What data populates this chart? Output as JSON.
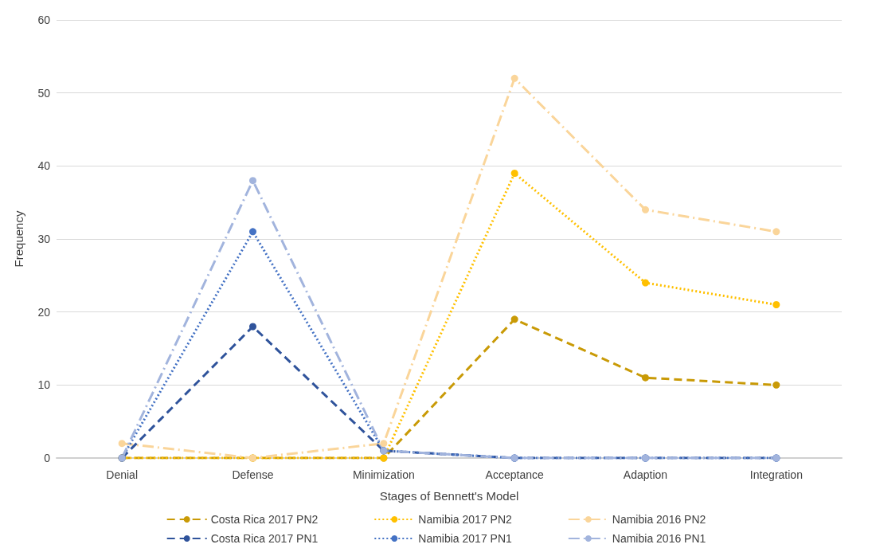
{
  "chart_data": {
    "type": "line",
    "xlabel": "Stages of Bennett's Model",
    "ylabel": "Frequency",
    "categories": [
      "Denial",
      "Defense",
      "Minimization",
      "Acceptance",
      "Adaption",
      "Integration"
    ],
    "series": [
      {
        "name": "Costa Rica 2017 PN2",
        "color": "#c99a06",
        "line_style": "dashed",
        "values": [
          0,
          0,
          0,
          19,
          11,
          10
        ]
      },
      {
        "name": "Namibia 2017 PN2",
        "color": "#ffc000",
        "line_style": "dotted",
        "values": [
          0,
          0,
          0,
          39,
          24,
          21
        ]
      },
      {
        "name": "Namibia 2016 PN2",
        "color": "#fad59a",
        "line_style": "dashdot",
        "values": [
          2,
          0,
          2,
          52,
          34,
          31
        ]
      },
      {
        "name": "Costa Rica 2017 PN1",
        "color": "#2f539b",
        "line_style": "dashed",
        "values": [
          0,
          18,
          1,
          0,
          0,
          0
        ]
      },
      {
        "name": "Namibia 2017 PN1",
        "color": "#4472c4",
        "line_style": "dotted",
        "values": [
          0,
          31,
          1,
          0,
          0,
          0
        ]
      },
      {
        "name": "Namibia 2016 PN1",
        "color": "#a2b4dd",
        "line_style": "dashdot",
        "values": [
          0,
          38,
          1,
          0,
          0,
          0
        ]
      }
    ],
    "ylim": [
      0,
      60
    ],
    "yticks": [
      0,
      10,
      20,
      30,
      40,
      50,
      60
    ],
    "grid": "y",
    "legend": "bottom",
    "marker": "circle"
  }
}
